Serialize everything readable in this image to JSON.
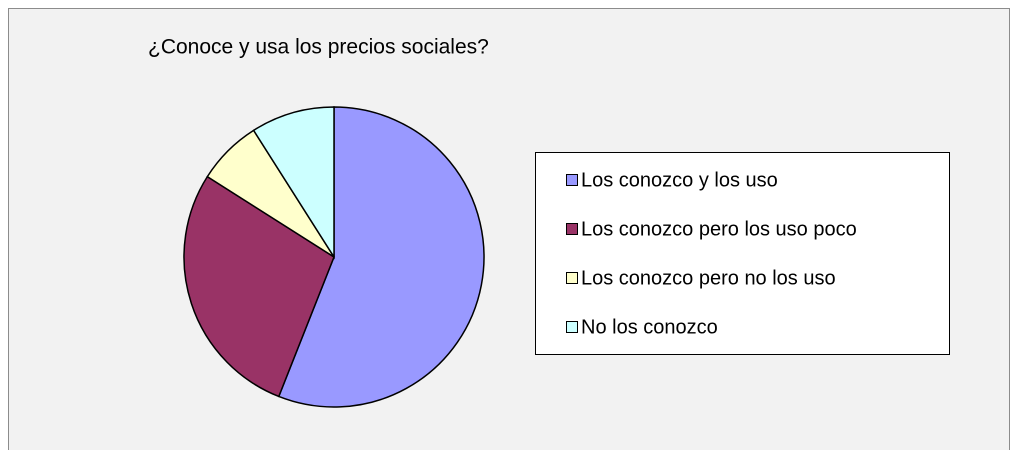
{
  "chart_data": {
    "type": "pie",
    "title": "¿Conoce y usa los precios sociales?",
    "categories": [
      "Los conozco y los uso",
      "Los conozco pero los uso poco",
      "Los conozco pero no los uso",
      "No los conozco"
    ],
    "values": [
      56,
      28,
      7,
      9
    ],
    "colors": [
      "#9999ff",
      "#993366",
      "#ffffcc",
      "#ccffff"
    ],
    "legend": "right"
  }
}
